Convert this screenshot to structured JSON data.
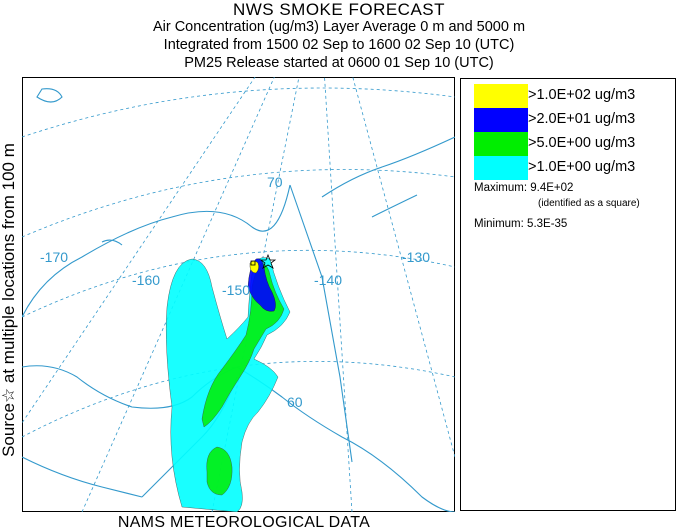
{
  "header": {
    "title": "NWS SMOKE FORECAST",
    "line2": "Air Concentration (ug/m3) Layer Average    0 m and  5000 m",
    "line3": "Integrated from 1500 02 Sep to 1600 02 Sep 10 (UTC)",
    "line4": "PM25 Release started at 0600 01 Sep 10 (UTC)"
  },
  "side_label": "Source☆ at multiple locations  from  100 m",
  "footer": "NAMS METEOROLOGICAL DATA",
  "legend": {
    "levels": [
      {
        "label": ">1.0E+02 ug/m3",
        "color": "#ffff00"
      },
      {
        "label": ">2.0E+01 ug/m3",
        "color": "#0000ff"
      },
      {
        "label": ">5.0E+00 ug/m3",
        "color": "#00ee00"
      },
      {
        "label": ">1.0E+00 ug/m3",
        "color": "#00ffff"
      }
    ],
    "maximum_label": "Maximum:",
    "maximum_value": "9.4E+02",
    "maximum_note": "(identified as a square)",
    "minimum_label": "Minimum:",
    "minimum_value": "5.3E-35"
  },
  "map": {
    "lon_labels": [
      "-170",
      "-160",
      "-150",
      "-140",
      "-130"
    ],
    "lat_labels": [
      "70",
      "60"
    ],
    "graticule_color": "#3399cc",
    "coast_color": "#3399cc",
    "label_color": "#3399cc"
  }
}
